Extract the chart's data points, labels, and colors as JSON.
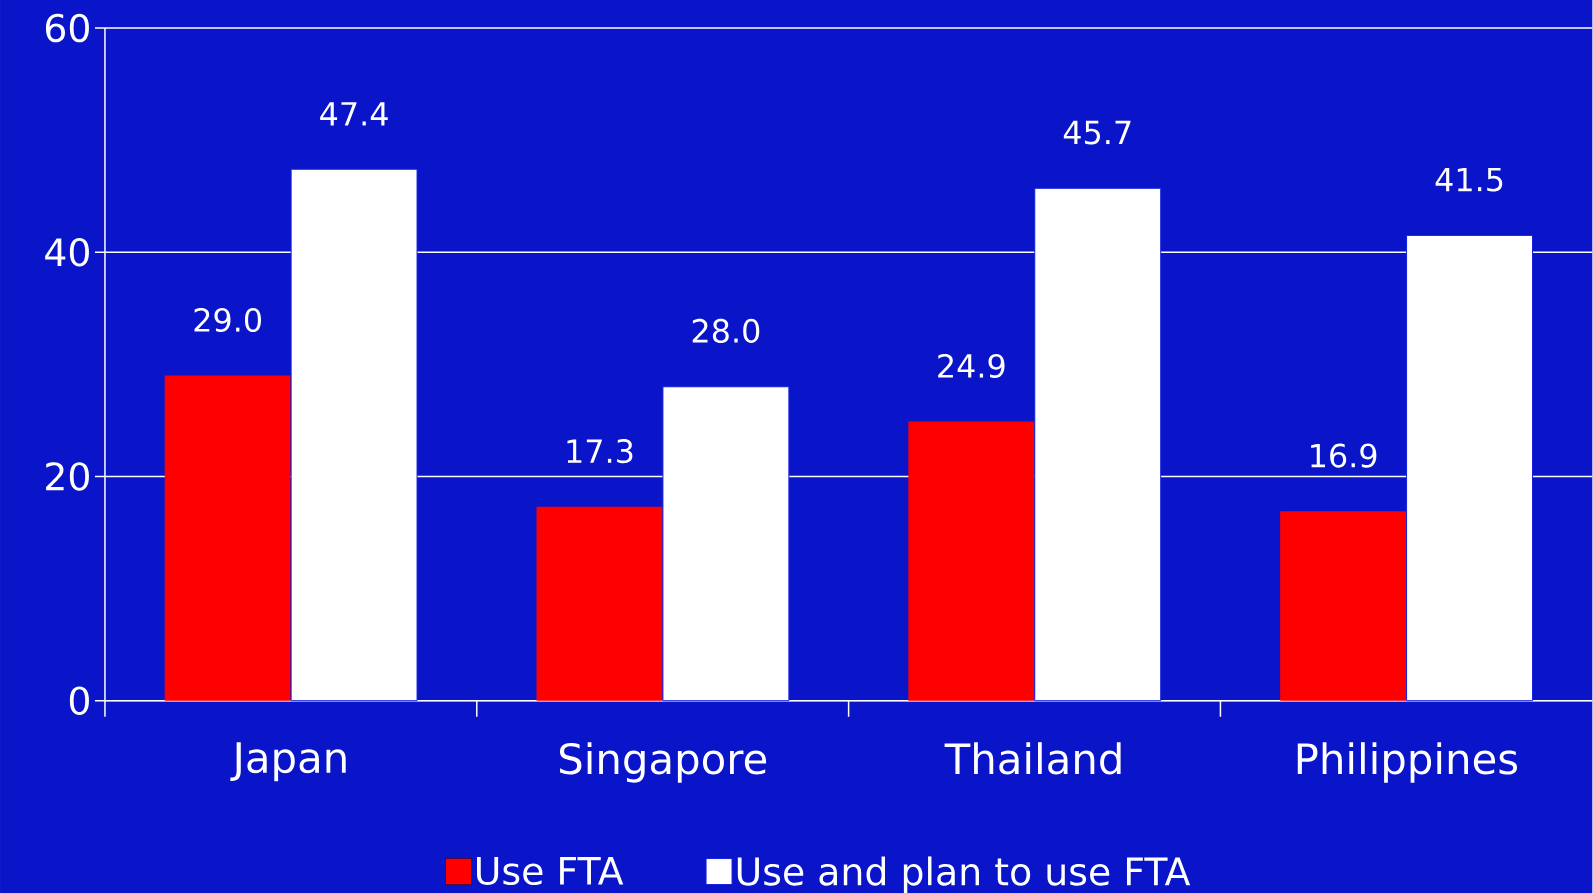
{
  "chart_data": {
    "type": "bar",
    "categories": [
      "Japan",
      "Singapore",
      "Thailand",
      "Philippines"
    ],
    "series": [
      {
        "name": "Use FTA",
        "color": "#ff0000",
        "values": [
          29.0,
          17.3,
          24.9,
          16.9
        ],
        "value_labels": [
          "29.0",
          "17.3",
          "24.9",
          "16.9"
        ]
      },
      {
        "name": "Use and plan to use FTA",
        "color": "#ffffff",
        "values": [
          47.4,
          28.0,
          45.7,
          41.5
        ],
        "value_labels": [
          "47.4",
          "28.0",
          "45.7",
          "41.5"
        ]
      }
    ],
    "ylim": [
      0,
      60
    ],
    "yticks": [
      0,
      20,
      40,
      60
    ],
    "grid": "y",
    "legend": "bottom"
  }
}
